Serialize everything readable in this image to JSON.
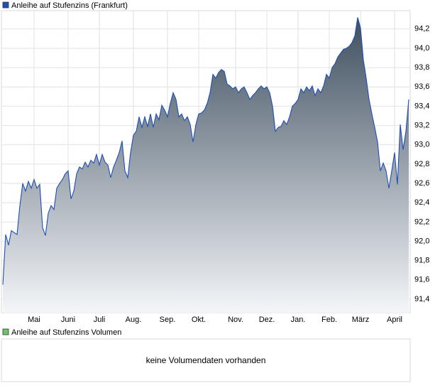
{
  "chart_data": [
    {
      "type": "area",
      "series": [
        {
          "name": "Anleihe auf Stufenzins (Frankfurt)",
          "color": "#1f4fb4",
          "values": [
            91.55,
            92.07,
            91.96,
            92.11,
            92.09,
            92.07,
            92.37,
            92.6,
            92.52,
            92.62,
            92.55,
            92.64,
            92.55,
            92.59,
            92.14,
            92.06,
            92.29,
            92.37,
            92.33,
            92.55,
            92.6,
            92.64,
            92.7,
            92.73,
            92.44,
            92.52,
            92.7,
            92.77,
            92.75,
            92.82,
            92.77,
            92.84,
            92.81,
            92.9,
            92.79,
            92.9,
            92.82,
            92.79,
            92.66,
            92.77,
            92.84,
            92.92,
            93.04,
            92.73,
            92.66,
            92.92,
            93.1,
            93.14,
            93.29,
            93.18,
            93.29,
            93.19,
            93.32,
            93.18,
            93.32,
            93.26,
            93.41,
            93.36,
            93.29,
            93.43,
            93.54,
            93.47,
            93.29,
            93.32,
            93.25,
            93.29,
            93.21,
            93.03,
            93.21,
            93.32,
            93.33,
            93.36,
            93.43,
            93.54,
            93.73,
            93.69,
            93.75,
            93.78,
            93.76,
            93.63,
            93.61,
            93.58,
            93.6,
            93.54,
            93.58,
            93.6,
            93.54,
            93.47,
            93.51,
            93.54,
            93.58,
            93.61,
            93.58,
            93.6,
            93.54,
            93.4,
            93.14,
            93.18,
            93.19,
            93.25,
            93.21,
            93.29,
            93.4,
            93.43,
            93.47,
            93.58,
            93.54,
            93.6,
            93.56,
            93.61,
            93.51,
            93.58,
            93.54,
            93.61,
            93.73,
            93.69,
            93.8,
            93.84,
            93.91,
            93.95,
            93.99,
            94.0,
            94.02,
            94.06,
            94.13,
            94.32,
            94.21,
            93.88,
            93.69,
            93.47,
            93.32,
            93.18,
            93.03,
            92.73,
            92.81,
            92.73,
            92.55,
            92.73,
            92.92,
            92.59,
            93.21,
            92.95,
            93.14,
            93.47
          ]
        }
      ],
      "xlim": [
        -0.5,
        143.5
      ],
      "xticks": [
        {
          "value": 11,
          "label": "Mai"
        },
        {
          "value": 23,
          "label": "Juni"
        },
        {
          "value": 34,
          "label": "Juli"
        },
        {
          "value": 46,
          "label": "Aug."
        },
        {
          "value": 58,
          "label": "Sep."
        },
        {
          "value": 69,
          "label": "Okt."
        },
        {
          "value": 82,
          "label": "Nov."
        },
        {
          "value": 93,
          "label": "Dez."
        },
        {
          "value": 104,
          "label": "Jan."
        },
        {
          "value": 115,
          "label": "Feb."
        },
        {
          "value": 126,
          "label": "März"
        },
        {
          "value": 138,
          "label": "April"
        }
      ],
      "ylim": [
        91.26,
        94.39
      ],
      "yticks": [
        {
          "value": 91.4,
          "label": "91,4"
        },
        {
          "value": 91.6,
          "label": "91,6"
        },
        {
          "value": 91.8,
          "label": "91,8"
        },
        {
          "value": 92.0,
          "label": "92,0"
        },
        {
          "value": 92.2,
          "label": "92,2"
        },
        {
          "value": 92.4,
          "label": "92,4"
        },
        {
          "value": 92.6,
          "label": "92,6"
        },
        {
          "value": 92.8,
          "label": "92,8"
        },
        {
          "value": 93.0,
          "label": "93,0"
        },
        {
          "value": 93.2,
          "label": "93,2"
        },
        {
          "value": 93.4,
          "label": "93,4"
        },
        {
          "value": 93.6,
          "label": "93,6"
        },
        {
          "value": 93.8,
          "label": "93,8"
        },
        {
          "value": 94.0,
          "label": "94,0"
        },
        {
          "value": 94.2,
          "label": "94,2"
        }
      ],
      "grid": true
    },
    {
      "type": "bar",
      "series": [
        {
          "name": "Anleihe auf Stufenzins Volumen",
          "color": "#6cc46c",
          "values": []
        }
      ],
      "annotation": "keine Volumendaten vorhanden"
    }
  ]
}
